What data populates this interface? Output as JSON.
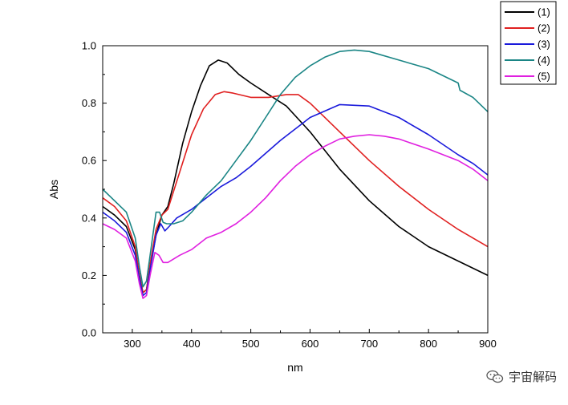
{
  "chart_data": {
    "type": "line",
    "xlabel": "nm",
    "ylabel": "Abs",
    "xlim": [
      250,
      900
    ],
    "ylim": [
      0.0,
      1.0
    ],
    "xticks": [
      300,
      400,
      500,
      600,
      700,
      800,
      900
    ],
    "yticks": [
      "0.0",
      "0.2",
      "0.4",
      "0.6",
      "0.8",
      "1.0"
    ],
    "grid": false,
    "legend_position": "top-right, outside plot",
    "series": [
      {
        "name": "(1)",
        "color": "#000000",
        "points": [
          [
            250,
            0.44
          ],
          [
            270,
            0.41
          ],
          [
            290,
            0.37
          ],
          [
            305,
            0.29
          ],
          [
            312,
            0.2
          ],
          [
            318,
            0.14
          ],
          [
            324,
            0.15
          ],
          [
            330,
            0.23
          ],
          [
            340,
            0.34
          ],
          [
            350,
            0.41
          ],
          [
            360,
            0.44
          ],
          [
            370,
            0.52
          ],
          [
            385,
            0.66
          ],
          [
            400,
            0.77
          ],
          [
            415,
            0.86
          ],
          [
            430,
            0.93
          ],
          [
            445,
            0.95
          ],
          [
            460,
            0.94
          ],
          [
            480,
            0.9
          ],
          [
            500,
            0.87
          ],
          [
            530,
            0.83
          ],
          [
            560,
            0.79
          ],
          [
            600,
            0.7
          ],
          [
            650,
            0.57
          ],
          [
            700,
            0.46
          ],
          [
            750,
            0.37
          ],
          [
            800,
            0.3
          ],
          [
            850,
            0.25
          ],
          [
            900,
            0.2
          ]
        ]
      },
      {
        "name": "(2)",
        "color": "#e02020",
        "points": [
          [
            250,
            0.47
          ],
          [
            270,
            0.44
          ],
          [
            290,
            0.39
          ],
          [
            305,
            0.3
          ],
          [
            312,
            0.2
          ],
          [
            318,
            0.14
          ],
          [
            324,
            0.15
          ],
          [
            330,
            0.24
          ],
          [
            340,
            0.36
          ],
          [
            350,
            0.41
          ],
          [
            360,
            0.43
          ],
          [
            380,
            0.56
          ],
          [
            400,
            0.69
          ],
          [
            420,
            0.78
          ],
          [
            440,
            0.83
          ],
          [
            455,
            0.84
          ],
          [
            470,
            0.835
          ],
          [
            500,
            0.82
          ],
          [
            530,
            0.82
          ],
          [
            560,
            0.83
          ],
          [
            580,
            0.83
          ],
          [
            600,
            0.8
          ],
          [
            650,
            0.7
          ],
          [
            700,
            0.6
          ],
          [
            750,
            0.51
          ],
          [
            800,
            0.43
          ],
          [
            850,
            0.36
          ],
          [
            900,
            0.3
          ]
        ]
      },
      {
        "name": "(3)",
        "color": "#1a1adb",
        "points": [
          [
            250,
            0.42
          ],
          [
            270,
            0.39
          ],
          [
            290,
            0.35
          ],
          [
            305,
            0.27
          ],
          [
            312,
            0.19
          ],
          [
            318,
            0.13
          ],
          [
            324,
            0.14
          ],
          [
            330,
            0.22
          ],
          [
            340,
            0.34
          ],
          [
            348,
            0.38
          ],
          [
            355,
            0.355
          ],
          [
            362,
            0.37
          ],
          [
            375,
            0.4
          ],
          [
            400,
            0.43
          ],
          [
            425,
            0.47
          ],
          [
            450,
            0.51
          ],
          [
            475,
            0.54
          ],
          [
            500,
            0.58
          ],
          [
            550,
            0.67
          ],
          [
            600,
            0.75
          ],
          [
            650,
            0.795
          ],
          [
            700,
            0.79
          ],
          [
            750,
            0.75
          ],
          [
            800,
            0.69
          ],
          [
            850,
            0.62
          ],
          [
            875,
            0.59
          ],
          [
            900,
            0.55
          ]
        ]
      },
      {
        "name": "(4)",
        "color": "#1a8585",
        "points": [
          [
            250,
            0.5
          ],
          [
            270,
            0.46
          ],
          [
            290,
            0.42
          ],
          [
            305,
            0.33
          ],
          [
            312,
            0.23
          ],
          [
            318,
            0.16
          ],
          [
            324,
            0.18
          ],
          [
            330,
            0.27
          ],
          [
            340,
            0.42
          ],
          [
            346,
            0.42
          ],
          [
            352,
            0.385
          ],
          [
            358,
            0.38
          ],
          [
            370,
            0.38
          ],
          [
            385,
            0.39
          ],
          [
            400,
            0.42
          ],
          [
            425,
            0.48
          ],
          [
            450,
            0.53
          ],
          [
            475,
            0.6
          ],
          [
            500,
            0.67
          ],
          [
            525,
            0.75
          ],
          [
            550,
            0.83
          ],
          [
            575,
            0.89
          ],
          [
            600,
            0.93
          ],
          [
            625,
            0.96
          ],
          [
            650,
            0.98
          ],
          [
            675,
            0.985
          ],
          [
            700,
            0.98
          ],
          [
            750,
            0.95
          ],
          [
            800,
            0.92
          ],
          [
            850,
            0.87
          ],
          [
            853,
            0.845
          ],
          [
            875,
            0.82
          ],
          [
            900,
            0.77
          ]
        ]
      },
      {
        "name": "(5)",
        "color": "#e020e0",
        "points": [
          [
            250,
            0.38
          ],
          [
            270,
            0.36
          ],
          [
            290,
            0.33
          ],
          [
            305,
            0.25
          ],
          [
            312,
            0.17
          ],
          [
            318,
            0.12
          ],
          [
            324,
            0.13
          ],
          [
            330,
            0.2
          ],
          [
            338,
            0.28
          ],
          [
            345,
            0.27
          ],
          [
            352,
            0.245
          ],
          [
            360,
            0.245
          ],
          [
            380,
            0.27
          ],
          [
            400,
            0.29
          ],
          [
            425,
            0.33
          ],
          [
            450,
            0.35
          ],
          [
            475,
            0.38
          ],
          [
            500,
            0.42
          ],
          [
            525,
            0.47
          ],
          [
            550,
            0.53
          ],
          [
            575,
            0.58
          ],
          [
            600,
            0.62
          ],
          [
            625,
            0.65
          ],
          [
            650,
            0.675
          ],
          [
            675,
            0.685
          ],
          [
            700,
            0.69
          ],
          [
            725,
            0.685
          ],
          [
            750,
            0.675
          ],
          [
            800,
            0.64
          ],
          [
            850,
            0.6
          ],
          [
            875,
            0.57
          ],
          [
            900,
            0.53
          ]
        ]
      }
    ]
  },
  "watermark": {
    "text": "宇宙解码",
    "icon": "wechat-icon"
  }
}
